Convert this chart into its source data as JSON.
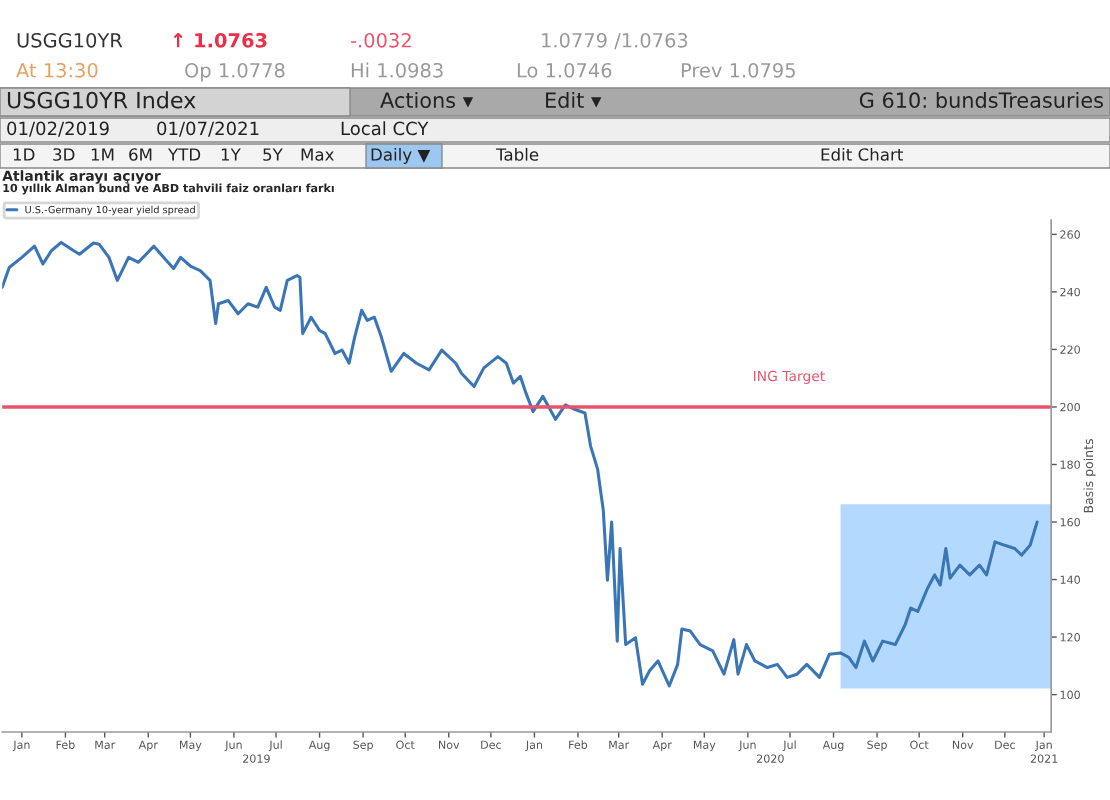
{
  "chart_data": {
    "type": "line",
    "title": "Atlantik arayı açıyor",
    "subtitle": "10 yıllık Alman bund ve ABD tahvili faiz oranları farkı",
    "ylabel": "Basis points",
    "annotations": [
      "USGG10YR",
      "↑ 1.0763",
      "-.0032",
      "1.0779 /1.0763",
      "At 13:30",
      "Op 1.0778",
      "Hi 1.0983",
      "Lo 1.0746",
      "Prev 1.0795",
      "USGG10YR Index",
      "Actions ▾",
      "Edit ▾",
      "G 610: bundsTreasuries",
      "01/02/2019",
      "01/07/2021",
      "Local CCY",
      "1D",
      "3D",
      "1M",
      "6M",
      "YTD",
      "1Y",
      "5Y",
      "Max",
      "Daily ▼",
      "Table",
      "Edit Chart"
    ],
    "x": [
      "2019-01-01",
      "2019-01-06",
      "2019-01-15",
      "2019-01-24",
      "2019-01-30",
      "2019-02-05",
      "2019-02-12",
      "2019-02-21",
      "2019-02-25",
      "2019-03-07",
      "2019-03-11",
      "2019-03-18",
      "2019-03-24",
      "2019-04-01",
      "2019-04-08",
      "2019-04-19",
      "2019-04-26",
      "2019-05-03",
      "2019-05-08",
      "2019-05-15",
      "2019-05-22",
      "2019-05-29",
      "2019-06-02",
      "2019-06-04",
      "2019-06-11",
      "2019-06-18",
      "2019-06-25",
      "2019-07-02",
      "2019-07-08",
      "2019-07-14",
      "2019-07-18",
      "2019-07-23",
      "2019-07-30",
      "2019-08-01",
      "2019-08-03",
      "2019-08-09",
      "2019-08-15",
      "2019-08-19",
      "2019-08-26",
      "2019-08-31",
      "2019-09-05",
      "2019-09-09",
      "2019-09-14",
      "2019-09-18",
      "2019-09-23",
      "2019-09-28",
      "2019-10-05",
      "2019-10-14",
      "2019-10-23",
      "2019-11-01",
      "2019-11-10",
      "2019-11-20",
      "2019-11-24",
      "2019-12-03",
      "2019-12-10",
      "2019-12-20",
      "2019-12-26",
      "2019-12-31",
      "2020-01-05",
      "2020-01-09",
      "2020-01-14",
      "2020-01-21",
      "2020-01-30",
      "2020-02-06",
      "2020-02-13",
      "2020-02-20",
      "2020-02-24",
      "2020-02-29",
      "2020-03-02",
      "2020-03-04",
      "2020-03-07",
      "2020-03-10",
      "2020-03-14",
      "2020-03-16",
      "2020-03-20",
      "2020-03-27",
      "2020-04-01",
      "2020-04-06",
      "2020-04-12",
      "2020-04-20",
      "2020-04-26",
      "2020-04-29",
      "2020-05-05",
      "2020-05-12",
      "2020-05-21",
      "2020-05-29",
      "2020-06-05",
      "2020-06-08",
      "2020-06-14",
      "2020-06-20",
      "2020-06-29",
      "2020-07-06",
      "2020-07-13",
      "2020-07-20",
      "2020-07-27",
      "2020-08-05",
      "2020-08-12",
      "2020-08-20",
      "2020-08-26",
      "2020-08-31",
      "2020-09-06",
      "2020-09-12",
      "2020-09-19",
      "2020-09-28",
      "2020-10-05",
      "2020-10-09",
      "2020-10-14",
      "2020-10-21",
      "2020-10-26",
      "2020-10-30",
      "2020-11-03",
      "2020-11-06",
      "2020-11-13",
      "2020-11-20",
      "2020-11-27",
      "2020-12-02",
      "2020-12-08",
      "2020-12-15",
      "2020-12-22",
      "2020-12-27",
      "2021-01-02",
      "2021-01-07"
    ],
    "series": [
      {
        "name": "U.S.-Germany 10-year yield spread",
        "color": "#3a75b5",
        "values": [
          241.6,
          248.5,
          252,
          255.9,
          249.7,
          254.3,
          257.2,
          254.3,
          253.1,
          257,
          256.6,
          252,
          244,
          252,
          250.3,
          255.9,
          252,
          248.1,
          252,
          249,
          247.4,
          244,
          229,
          235.9,
          237,
          232.4,
          235.9,
          234.7,
          241.6,
          234.7,
          233.6,
          244,
          245.7,
          245,
          225.5,
          231.2,
          226.6,
          225.5,
          218.6,
          219.8,
          215.2,
          224.3,
          233.6,
          230.1,
          231.2,
          224.3,
          212.4,
          218.6,
          215.2,
          212.9,
          219.8,
          215.2,
          211.7,
          207.1,
          213.6,
          217.5,
          215.2,
          208.3,
          210.6,
          204.8,
          198.4,
          203.7,
          195.7,
          200.7,
          199.1,
          197.9,
          186.4,
          178.4,
          171.2,
          164.3,
          139.8,
          160,
          118.6,
          150.8,
          117.4,
          119.8,
          103.6,
          108.3,
          111.7,
          103,
          110.5,
          122.8,
          122.1,
          117.4,
          115.2,
          107.1,
          119.1,
          107.1,
          117.4,
          111.7,
          109.4,
          110.5,
          106,
          107.1,
          110.5,
          106,
          114,
          114.5,
          112.9,
          109.4,
          118.6,
          111.7,
          118.6,
          117.4,
          124.3,
          130.1,
          128.9,
          137,
          141.6,
          138.1,
          150.8,
          140.5,
          145,
          141.6,
          145,
          141.6,
          153.1,
          151.9,
          150.8,
          148.5,
          151.9,
          160
        ]
      }
    ],
    "xlim": [
      "2019-01-01",
      "2021-01-17"
    ],
    "xticks": [
      {
        "value": "2019-01-15",
        "label": "Jan"
      },
      {
        "value": "2019-02-15",
        "label": "Feb"
      },
      {
        "value": "2019-03-15",
        "label": "Mar"
      },
      {
        "value": "2019-04-15",
        "label": "Apr"
      },
      {
        "value": "2019-05-15",
        "label": "May"
      },
      {
        "value": "2019-06-15",
        "label": "Jun"
      },
      {
        "value": "2019-07-15",
        "label": "Jul"
      },
      {
        "value": "2019-08-15",
        "label": "Aug"
      },
      {
        "value": "2019-09-15",
        "label": "Sep"
      },
      {
        "value": "2019-10-15",
        "label": "Oct"
      },
      {
        "value": "2019-11-15",
        "label": "Nov"
      },
      {
        "value": "2019-12-15",
        "label": "Dec"
      },
      {
        "value": "2020-01-15",
        "label": "Jan"
      },
      {
        "value": "2020-02-15",
        "label": "Feb"
      },
      {
        "value": "2020-03-15",
        "label": "Mar"
      },
      {
        "value": "2020-04-15",
        "label": "Apr"
      },
      {
        "value": "2020-05-15",
        "label": "May"
      },
      {
        "value": "2020-06-15",
        "label": "Jun"
      },
      {
        "value": "2020-07-15",
        "label": "Jul"
      },
      {
        "value": "2020-08-15",
        "label": "Aug"
      },
      {
        "value": "2020-09-15",
        "label": "Sep"
      },
      {
        "value": "2020-10-15",
        "label": "Oct"
      },
      {
        "value": "2020-11-15",
        "label": "Nov"
      },
      {
        "value": "2020-12-15",
        "label": "Dec"
      },
      {
        "value": "2021-01-12",
        "label": "Jan"
      }
    ],
    "x2lim": [
      "2019-01-01",
      "2021-01-17"
    ],
    "x2ticks": [
      {
        "value": "2019-07-01",
        "label": "2019"
      },
      {
        "value": "2020-07-01",
        "label": "2020"
      },
      {
        "value": "2021-01-12",
        "label": "2021"
      }
    ],
    "ylim": [
      87,
      265
    ],
    "yticks": [
      100,
      120,
      140,
      160,
      180,
      200,
      220,
      240,
      260
    ],
    "ref_lines": [
      {
        "axis": "y",
        "value": 200,
        "label": "ING Target",
        "color": "#e8536b"
      }
    ],
    "bands": [
      {
        "axis": "x",
        "from": "2020-08-20",
        "to": "2021-01-17",
        "color": "#b3d9ff"
      }
    ],
    "legend": "top left",
    "grid": false,
    "marker": "none",
    "line_style": "solid"
  }
}
